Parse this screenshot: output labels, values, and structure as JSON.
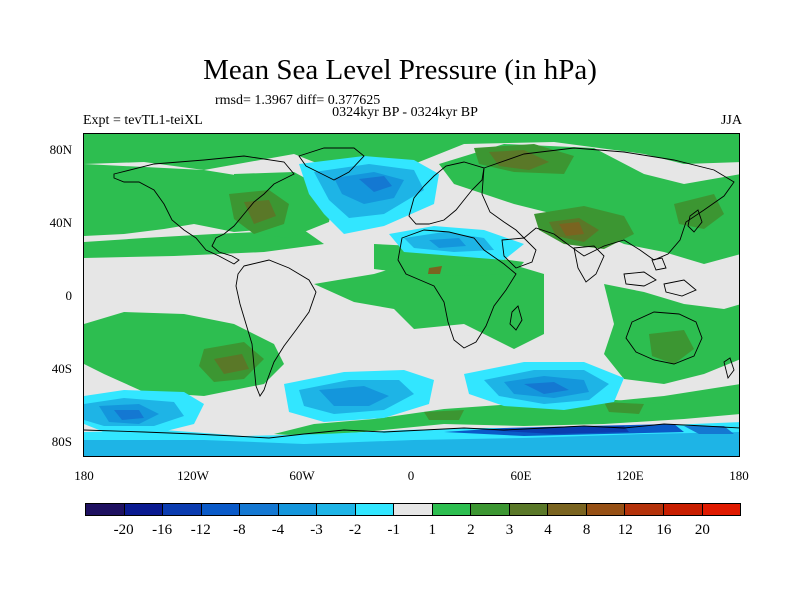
{
  "title": "Mean Sea Level Pressure (in hPa)",
  "stats": "rmsd= 1.3967 diff= 0.377625",
  "period": "0324kyr BP - 0324kyr BP",
  "experiment": "Expt = tevTL1-teiXL",
  "season": "JJA",
  "y_axis_labels": [
    "80N",
    "40N",
    "0",
    "40S",
    "80S"
  ],
  "x_axis_labels": [
    "180",
    "120W",
    "60W",
    "0",
    "60E",
    "120E",
    "180"
  ],
  "colorbar": {
    "labels": [
      "-20",
      "-16",
      "-12",
      "-8",
      "-4",
      "-3",
      "-2",
      "-1",
      "1",
      "2",
      "3",
      "4",
      "8",
      "12",
      "16",
      "20"
    ],
    "colors": [
      "#1e1060",
      "#0a1a90",
      "#0b3cb0",
      "#0a5ac8",
      "#1478d2",
      "#1496dc",
      "#1eb4e6",
      "#32e6ff",
      "#e6e6e6",
      "#2dbe50",
      "#3c9632",
      "#5a7828",
      "#7a6420",
      "#965014",
      "#b4320a",
      "#c81e00",
      "#e01a00"
    ]
  }
}
